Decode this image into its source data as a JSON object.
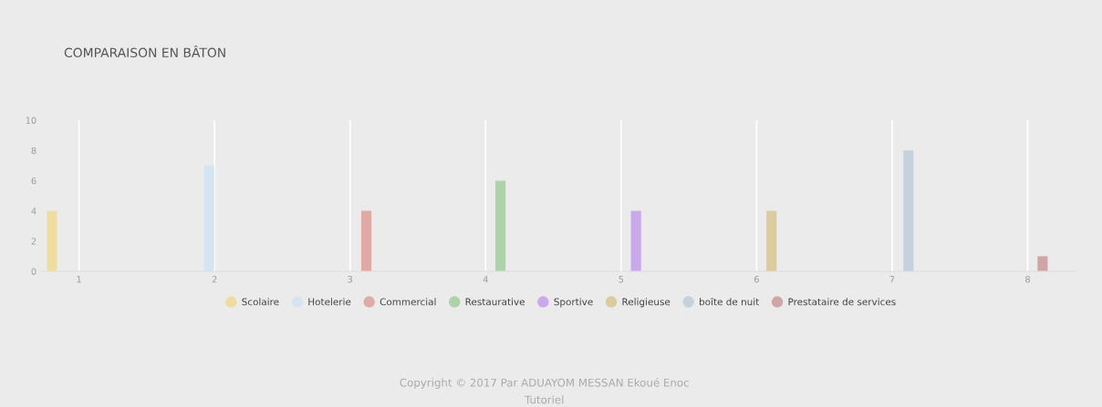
{
  "chart_data": {
    "type": "bar",
    "title": "COMPARAISON EN BÂTON",
    "series": [
      {
        "name": "Scolaire",
        "color": "#f0dca0",
        "x": [
          0.8
        ],
        "values": [
          4
        ]
      },
      {
        "name": "Hotelerie",
        "color": "#d5e4f1",
        "x": [
          1.96
        ],
        "values": [
          7
        ]
      },
      {
        "name": "Commercial",
        "color": "#e0aaa7",
        "x": [
          3.12
        ],
        "values": [
          4
        ]
      },
      {
        "name": "Restaurative",
        "color": "#add3a8",
        "x": [
          4.11
        ],
        "values": [
          6
        ]
      },
      {
        "name": "Sportive",
        "color": "#c9a9ec",
        "x": [
          5.11
        ],
        "values": [
          4
        ]
      },
      {
        "name": "Religieuse",
        "color": "#dbcb9f",
        "x": [
          6.11
        ],
        "values": [
          4
        ]
      },
      {
        "name": "boîte de nuit",
        "color": "#c5d2dd",
        "x": [
          7.12
        ],
        "values": [
          8
        ]
      },
      {
        "name": "Prestataire de services",
        "color": "#d0a5a5",
        "x": [
          8.11
        ],
        "values": [
          1
        ]
      }
    ],
    "xlim": [
      0.72,
      8.36
    ],
    "xticks": [
      1,
      2,
      3,
      4,
      5,
      6,
      7,
      8
    ],
    "ylim": [
      0,
      10
    ],
    "yticks": [
      0,
      2,
      4,
      6,
      8,
      10
    ],
    "grid": "x",
    "legend": "bottom",
    "annotations": [
      "Copyright © 2017 Par ADUAYOM MESSAN Ekoué Enoc",
      "Tutoriel"
    ]
  }
}
